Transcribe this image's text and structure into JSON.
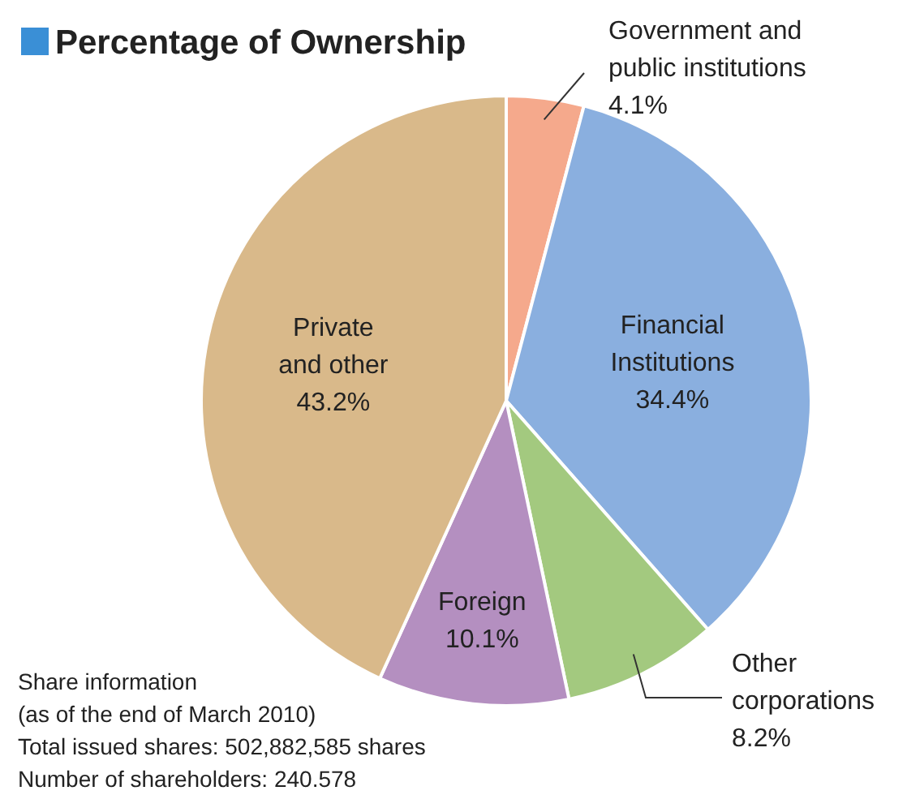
{
  "chart_data": {
    "type": "pie",
    "title": "Percentage of Ownership",
    "categories": [
      "Government and public institutions",
      "Financial Institutions",
      "Other corporations",
      "Foreign",
      "Private and other"
    ],
    "values": [
      4.1,
      34.4,
      8.2,
      10.1,
      43.2
    ],
    "colors": [
      "#f5a98c",
      "#8aafdf",
      "#a3c97f",
      "#b48fc0",
      "#d9b98a"
    ],
    "value_labels": [
      "4.1%",
      "34.4%",
      "8.2%",
      "10.1%",
      "43.2%"
    ],
    "annotations": [
      "Share information",
      "(as of the end of March 2010)",
      "Total issued shares: 502,882,585 shares",
      "Number of shareholders: 240.578"
    ]
  }
}
